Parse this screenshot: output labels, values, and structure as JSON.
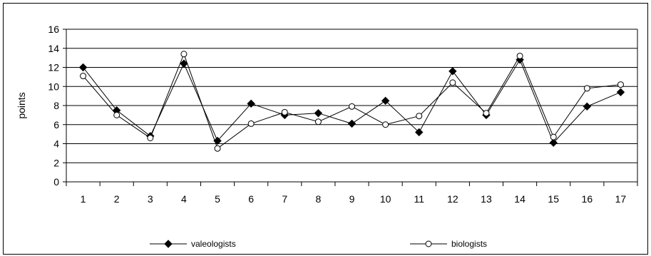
{
  "chart_data": {
    "type": "line",
    "ylabel": "points",
    "xlabel": "",
    "ylim": [
      0,
      16
    ],
    "yticks": [
      0,
      2,
      4,
      6,
      8,
      10,
      12,
      14,
      16
    ],
    "categories": [
      "1",
      "2",
      "3",
      "4",
      "5",
      "6",
      "7",
      "8",
      "9",
      "10",
      "11",
      "12",
      "13",
      "14",
      "15",
      "16",
      "17"
    ],
    "grid": "horizontal",
    "legend_position": "bottom",
    "series": [
      {
        "name": "valeologists",
        "marker": "filled-diamond",
        "color": "#000000",
        "values": [
          12.0,
          7.5,
          4.8,
          12.4,
          4.3,
          8.2,
          7.0,
          7.2,
          6.1,
          8.5,
          5.2,
          11.6,
          7.0,
          12.8,
          4.1,
          7.9,
          9.4
        ]
      },
      {
        "name": "biologists",
        "marker": "open-circle",
        "color": "#000000",
        "values": [
          11.1,
          7.0,
          4.6,
          13.4,
          3.5,
          6.1,
          7.3,
          6.3,
          7.9,
          6.0,
          6.9,
          10.4,
          7.2,
          13.2,
          4.7,
          9.8,
          10.2
        ]
      }
    ]
  }
}
